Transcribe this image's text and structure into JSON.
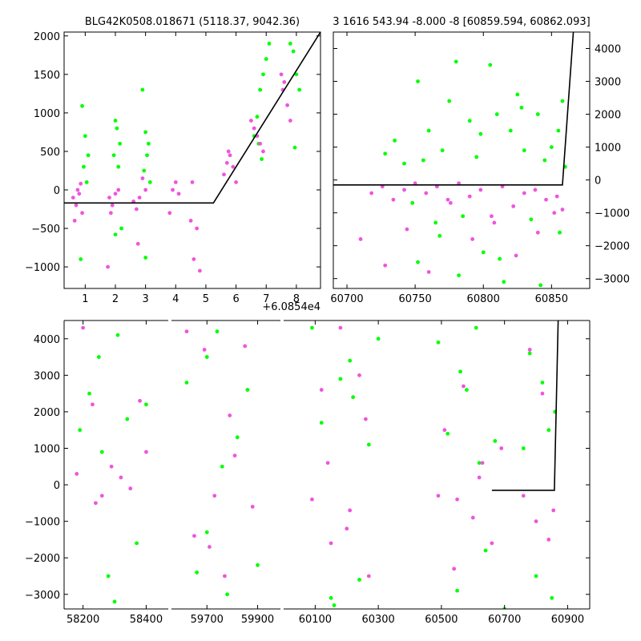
{
  "figure": {
    "title_left": "BLG42K0508.018671 (5118.37, 9042.36)",
    "title_right": "3 1616 543.94 -8.000 -8 [60859.594, 60862.093]",
    "colors": {
      "green": "#00ff00",
      "pink": "#ee55dd",
      "model": "#000000"
    }
  },
  "chart_data": [
    {
      "name": "folded-zoom",
      "type": "scatter",
      "title": "BLG42K0508.018671 (5118.37, 9042.36)",
      "x_offset_label": "+6.0854e4",
      "xlim": [
        0.3,
        8.8
      ],
      "ylim": [
        -1280,
        2050
      ],
      "xticks": [
        1,
        2,
        3,
        4,
        5,
        6,
        7,
        8
      ],
      "yticks": [
        -1000,
        -500,
        0,
        500,
        1000,
        1500,
        2000
      ],
      "model_line": [
        [
          0.3,
          -170
        ],
        [
          5.25,
          -170
        ],
        [
          8.8,
          2050
        ]
      ],
      "series": [
        {
          "color": "green",
          "x": [
            0.9,
            1.0,
            1.1,
            0.95,
            1.05,
            0.85,
            2.0,
            2.05,
            2.15,
            1.95,
            2.1,
            2.2,
            2.0,
            2.9,
            3.0,
            3.1,
            3.05,
            2.95,
            3.15,
            3.0,
            6.6,
            6.7,
            6.8,
            6.9,
            7.0,
            7.1,
            6.75,
            6.85,
            7.8,
            7.9,
            8.0,
            8.1,
            7.95
          ],
          "y": [
            1090,
            700,
            450,
            300,
            100,
            -900,
            900,
            800,
            600,
            450,
            300,
            -500,
            -580,
            1300,
            750,
            600,
            450,
            250,
            100,
            -880,
            700,
            950,
            1300,
            1500,
            1700,
            1900,
            600,
            400,
            1900,
            1800,
            1500,
            1300,
            550
          ]
        },
        {
          "color": "pink",
          "x": [
            0.6,
            0.7,
            0.8,
            0.9,
            0.75,
            0.65,
            0.85,
            1.8,
            1.9,
            2.0,
            1.85,
            2.1,
            1.75,
            2.6,
            2.7,
            2.8,
            2.9,
            2.75,
            3.0,
            3.8,
            3.9,
            4.0,
            4.1,
            4.5,
            4.6,
            4.7,
            4.8,
            4.55,
            5.6,
            5.7,
            5.8,
            5.9,
            6.0,
            5.75,
            6.5,
            6.6,
            6.7,
            6.8,
            6.9,
            7.5,
            7.6,
            7.7,
            7.8,
            7.55
          ],
          "y": [
            -100,
            -200,
            -50,
            -300,
            0,
            -400,
            80,
            -100,
            -200,
            -50,
            -300,
            0,
            -1000,
            -150,
            -250,
            -100,
            150,
            -700,
            0,
            -300,
            0,
            100,
            -50,
            -400,
            -900,
            -500,
            -1050,
            100,
            200,
            350,
            450,
            300,
            100,
            500,
            900,
            800,
            700,
            600,
            500,
            1500,
            1400,
            1100,
            900,
            1300
          ]
        }
      ]
    },
    {
      "name": "season-zoom",
      "type": "scatter",
      "title": "3 1616 543.94 -8.000 -8 [60859.594, 60862.093]",
      "xlim": [
        60690,
        60878
      ],
      "ylim": [
        -3300,
        4500
      ],
      "xticks": [
        60700,
        60750,
        60800,
        60850
      ],
      "yticks": [
        -3000,
        -2000,
        -1000,
        0,
        1000,
        2000,
        3000,
        4000
      ],
      "model_line": [
        [
          60690,
          -150
        ],
        [
          60858,
          -150
        ],
        [
          60866,
          4500
        ]
      ],
      "series": [
        {
          "color": "green",
          "x": [
            60728,
            60735,
            60742,
            60748,
            60752,
            60756,
            60760,
            60765,
            60770,
            60775,
            60780,
            60785,
            60790,
            60795,
            60800,
            60805,
            60810,
            60815,
            60820,
            60825,
            60830,
            60835,
            60840,
            60845,
            60850,
            60855,
            60858,
            60860,
            60752,
            60768,
            60782,
            60798,
            60812,
            60828,
            60842,
            60856
          ],
          "y": [
            800,
            1200,
            500,
            -700,
            3000,
            600,
            1500,
            -1300,
            900,
            2400,
            3600,
            -1100,
            1800,
            700,
            -2200,
            3500,
            2000,
            -3100,
            1500,
            2600,
            900,
            -1200,
            2000,
            600,
            1000,
            1500,
            2400,
            400,
            -2500,
            -1700,
            -2900,
            1400,
            -2400,
            2200,
            -3200,
            -1600
          ]
        },
        {
          "color": "pink",
          "x": [
            60710,
            60718,
            60726,
            60734,
            60742,
            60750,
            60758,
            60766,
            60774,
            60782,
            60790,
            60798,
            60806,
            60814,
            60822,
            60830,
            60838,
            60846,
            60854,
            60858,
            60728,
            60744,
            60760,
            60776,
            60792,
            60808,
            60824,
            60840,
            60852
          ],
          "y": [
            -1800,
            -400,
            -200,
            -600,
            -300,
            -100,
            -400,
            -200,
            -600,
            -100,
            -500,
            -300,
            -1100,
            -200,
            -800,
            -400,
            -300,
            -600,
            -500,
            -900,
            -2600,
            -1500,
            -2800,
            -700,
            -1800,
            -1300,
            -2300,
            -1600,
            -1000
          ]
        }
      ]
    },
    {
      "name": "full-lightcurve",
      "type": "scatter",
      "xlim": [
        58140,
        60970
      ],
      "ylim": [
        -3400,
        4500
      ],
      "xticks": [
        58200,
        58400,
        59700,
        59900,
        60100,
        60300,
        60500,
        60700,
        60900
      ],
      "yticks": [
        -3000,
        -2000,
        -1000,
        0,
        1000,
        2000,
        3000,
        4000
      ],
      "model_line": [
        [
          60660,
          -150
        ],
        [
          60858,
          -150
        ],
        [
          60870,
          4500
        ]
      ],
      "series": [
        {
          "color": "green",
          "x": [
            58190,
            58220,
            58250,
            58280,
            58310,
            58340,
            58370,
            58400,
            58300,
            58260,
            59620,
            59660,
            59700,
            59740,
            59780,
            59820,
            59860,
            59900,
            59760,
            59700,
            60090,
            60120,
            60150,
            60180,
            60210,
            60240,
            60270,
            60300,
            60160,
            60220,
            60490,
            60520,
            60550,
            60580,
            60610,
            60640,
            60670,
            60700,
            60560,
            60620,
            60760,
            60780,
            60800,
            60820,
            60840,
            60850,
            60860
          ],
          "y": [
            1500,
            2500,
            3500,
            -2500,
            4100,
            1800,
            -1600,
            2200,
            -3200,
            900,
            2800,
            -2400,
            3500,
            4200,
            -3000,
            1300,
            2600,
            -2200,
            500,
            -1300,
            4300,
            1700,
            -3100,
            2900,
            3400,
            -2600,
            1100,
            4000,
            -3300,
            2400,
            3900,
            1400,
            -2900,
            2600,
            4300,
            -1800,
            1200,
            -3400,
            3100,
            600,
            1000,
            3600,
            -2500,
            2800,
            1500,
            -3100,
            2000
          ]
        },
        {
          "color": "pink",
          "x": [
            58180,
            58200,
            58230,
            58260,
            58290,
            58320,
            58350,
            58380,
            58400,
            58240,
            59620,
            59650,
            59690,
            59730,
            59770,
            59810,
            59850,
            59880,
            59710,
            59790,
            60090,
            60120,
            60150,
            60180,
            60210,
            60240,
            60270,
            60140,
            60200,
            60260,
            60490,
            60510,
            60540,
            60570,
            60600,
            60630,
            60660,
            60690,
            60550,
            60620,
            60760,
            60780,
            60800,
            60820,
            60840,
            60855
          ],
          "y": [
            300,
            4300,
            2200,
            -300,
            500,
            200,
            -100,
            2300,
            900,
            -500,
            4200,
            -1400,
            3700,
            -300,
            -2500,
            800,
            3800,
            -600,
            -1700,
            1900,
            -400,
            2600,
            -1600,
            4300,
            -700,
            3000,
            -2500,
            600,
            -1200,
            1800,
            -300,
            1500,
            -2300,
            2700,
            -900,
            600,
            -1600,
            1000,
            -400,
            200,
            -300,
            3700,
            -1000,
            2500,
            -1500,
            -700
          ]
        }
      ]
    }
  ]
}
